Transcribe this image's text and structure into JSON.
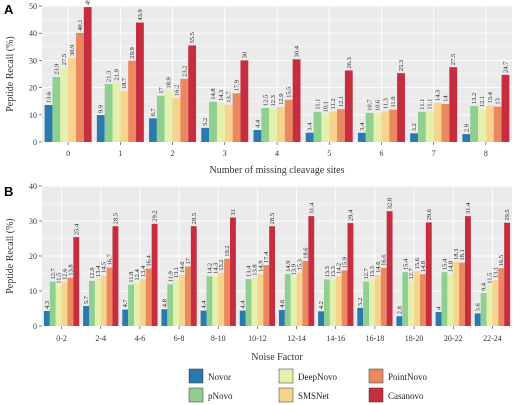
{
  "colors": {
    "Novor": "#2a7ab0",
    "pNovo": "#8fcf8f",
    "DeepNovo": "#e4f0ac",
    "SMSNet": "#f7d48e",
    "PointNovo": "#ec8860",
    "Casanovo": "#c62d3e"
  },
  "legend": {
    "items": [
      "Novor",
      "pNovo",
      "DeepNovo",
      "SMSNet",
      "PointNovo",
      "Casanovo"
    ]
  },
  "chart_data": [
    {
      "panel": "A",
      "type": "bar",
      "xlabel": "Number of missing cleavage sites",
      "ylabel": "Peptide Recall (%)",
      "ylim": [
        0,
        50
      ],
      "yticks": [
        0,
        10,
        20,
        30,
        40,
        50
      ],
      "grid": true,
      "categories": [
        "0",
        "1",
        "2",
        "3",
        "4",
        "5",
        "6",
        "7",
        "8"
      ],
      "series": [
        {
          "name": "Novor",
          "values": [
            13.6,
            9.9,
            8.7,
            5.2,
            4.4,
            3.4,
            3.4,
            3.2,
            2.9
          ],
          "labels": [
            "13.6",
            "9.9",
            "8.7",
            "5.2",
            "4.4",
            "3.4",
            "3.4",
            "3.2",
            "2.9"
          ]
        },
        {
          "name": "pNovo",
          "values": [
            23.9,
            21.3,
            17,
            14.8,
            12.5,
            11.1,
            10.7,
            11.1,
            13.2
          ],
          "labels": [
            "23.9",
            "21.3",
            "17",
            "14.8",
            "12.5",
            "11.1",
            "10.7",
            "11.1",
            "13.2"
          ]
        },
        {
          "name": "DeepNovo",
          "values": [
            27.5,
            21.9,
            18.9,
            14.3,
            12.3,
            10.1,
            10.6,
            11.1,
            12.1
          ],
          "labels": [
            "27.5",
            "21.9",
            "18.9",
            "14.3",
            "12.3",
            "10.1",
            "10.6",
            "11.1",
            "12.1"
          ]
        },
        {
          "name": "SMSNet",
          "values": [
            30.9,
            18.7,
            16.2,
            13.7,
            12.9,
            11.2,
            11.3,
            14.3,
            13.4
          ],
          "labels": [
            "30.9",
            "18.7",
            "16.2",
            "13.7",
            "12.9",
            "11.2",
            "11.3",
            "14.3",
            "13.4"
          ]
        },
        {
          "name": "PointNovo",
          "values": [
            40.1,
            29.9,
            23.2,
            17.9,
            15.5,
            12.1,
            11.9,
            14,
            13
          ],
          "labels": [
            "40.1",
            "29.9",
            "23.2",
            "17.9",
            "15.5",
            "12.1",
            "11.9",
            "14",
            "13"
          ]
        },
        {
          "name": "Casanovo",
          "values": [
            49.6,
            43.9,
            35.5,
            30,
            30.4,
            26.3,
            25.3,
            27.5,
            24.7
          ],
          "labels": [
            "49.6",
            "43.9",
            "35.5",
            "30",
            "30.4",
            "26.3",
            "25.3",
            "27.5",
            "24.7"
          ]
        }
      ]
    },
    {
      "panel": "B",
      "type": "bar",
      "xlabel": "Noise Factor",
      "ylabel": "Peptide Recall (%)",
      "ylim": [
        0,
        40
      ],
      "yticks": [
        0,
        10,
        20,
        30,
        40
      ],
      "grid": true,
      "categories": [
        "0-2",
        "2-4",
        "4-6",
        "6-8",
        "8-10",
        "10-12",
        "12-14",
        "14-16",
        "16-18",
        "18-20",
        "20-22",
        "22-24"
      ],
      "series": [
        {
          "name": "Novor",
          "values": [
            4.3,
            5.7,
            4.7,
            4.8,
            4.4,
            4.4,
            4.6,
            4.2,
            5.2,
            2.8,
            4,
            3.6
          ],
          "labels": [
            "4.3",
            "5.7",
            "4.7",
            "4.8",
            "4.4",
            "4.4",
            "4.6",
            "4.2",
            "5.2",
            "2.8",
            "4",
            "3.6"
          ]
        },
        {
          "name": "pNovo",
          "values": [
            12.7,
            12.9,
            11.8,
            11.9,
            14.2,
            13.4,
            14.9,
            13.3,
            12.7,
            15.4,
            15.4,
            9.4
          ],
          "labels": [
            "12.7",
            "12.9",
            "11.8",
            "11.9",
            "14.2",
            "13.4",
            "14.9",
            "13.3",
            "12.7",
            "15.4",
            "15.4",
            "9.4"
          ]
        },
        {
          "name": "DeepNovo",
          "values": [
            11.5,
            13.4,
            12.4,
            13.1,
            14.3,
            13.8,
            13.9,
            13.3,
            13.3,
            12.7,
            14.8,
            11.5
          ],
          "labels": [
            "11.5",
            "13.4",
            "12.4",
            "13.1",
            "14.3",
            "13.8",
            "13.9",
            "13.3",
            "13.3",
            "12.7",
            "14.8",
            "11.5"
          ]
        },
        {
          "name": "SMSNet",
          "values": [
            12.6,
            14.5,
            13.4,
            14.6,
            15.2,
            14.9,
            15.3,
            14.2,
            14.6,
            15.6,
            18.3,
            13.1
          ],
          "labels": [
            "12.6",
            "14.5",
            "13.4",
            "14.6",
            "15.2",
            "14.9",
            "15.3",
            "14.2",
            "14.6",
            "15.6",
            "18.3",
            "13.1"
          ]
        },
        {
          "name": "PointNovo",
          "values": [
            13.8,
            16.7,
            16.4,
            17,
            19.2,
            17.4,
            18.6,
            15.9,
            16.6,
            14.8,
            18.1,
            16.5
          ],
          "labels": [
            "13.8",
            "16.7",
            "16.4",
            "17",
            "19.2",
            "17.4",
            "18.6",
            "15.9",
            "16.6",
            "14.8",
            "18.1",
            "16.5"
          ]
        },
        {
          "name": "Casanovo",
          "values": [
            25.4,
            28.5,
            29.2,
            28.5,
            31,
            28.5,
            31.4,
            29.4,
            32.8,
            29.6,
            31.4,
            29.5
          ],
          "labels": [
            "25.4",
            "28.5",
            "29.2",
            "28.5",
            "31",
            "28.5",
            "31.4",
            "29.4",
            "32.8",
            "29.6",
            "31.4",
            "29.5"
          ]
        }
      ]
    }
  ]
}
